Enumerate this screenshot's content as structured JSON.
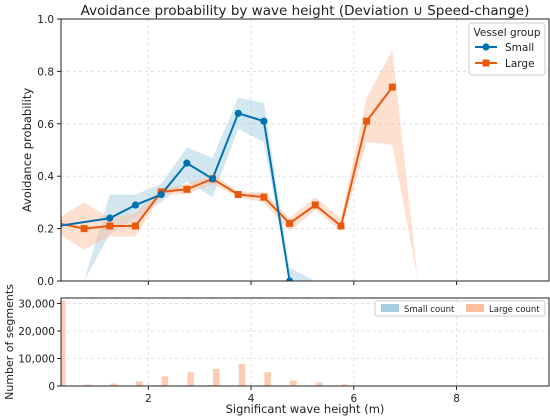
{
  "chart_data": [
    {
      "type": "line",
      "title": "Avoidance probability by wave height (Deviation ∪ Speed-change)",
      "xlabel": "",
      "ylabel": "Avoidance probability",
      "xlim": [
        0.3,
        9.8
      ],
      "ylim": [
        0,
        1.0
      ],
      "yticks": [
        0.0,
        0.2,
        0.4,
        0.6,
        0.8,
        1.0
      ],
      "ytick_labels": [
        "0.0",
        "0.2",
        "0.4",
        "0.6",
        "0.8",
        "1.0"
      ],
      "grid": true,
      "legend": {
        "title": "Vessel group",
        "placement": "top-right"
      },
      "series": [
        {
          "name": "Small",
          "color": "#0072B2",
          "marker": "circle",
          "x": [
            0.25,
            1.25,
            1.75,
            2.25,
            2.75,
            3.25,
            3.75,
            4.25,
            4.75
          ],
          "y": [
            0.21,
            0.24,
            0.29,
            0.33,
            0.45,
            0.39,
            0.64,
            0.61,
            0.0
          ],
          "ci_x": [
            0.25,
            0.75,
            1.25,
            1.75,
            2.25,
            2.75,
            3.25,
            3.75,
            4.25,
            4.75,
            5.25
          ],
          "ci_low": [
            0.22,
            0.0,
            0.18,
            0.24,
            0.3,
            0.38,
            0.32,
            0.58,
            0.53,
            0.0,
            0.0
          ],
          "ci_high": [
            0.22,
            0.0,
            0.33,
            0.33,
            0.37,
            0.51,
            0.47,
            0.7,
            0.68,
            0.05,
            0.0
          ]
        },
        {
          "name": "Large",
          "color": "#E8590C",
          "marker": "square",
          "x": [
            0.25,
            0.75,
            1.25,
            1.75,
            2.25,
            2.75,
            3.25,
            3.75,
            4.25,
            4.75,
            5.25,
            5.75,
            6.25,
            6.75
          ],
          "y": [
            0.22,
            0.2,
            0.21,
            0.21,
            0.34,
            0.35,
            0.39,
            0.33,
            0.32,
            0.22,
            0.29,
            0.21,
            0.61,
            0.74
          ],
          "ci_x": [
            0.25,
            0.75,
            1.25,
            1.75,
            2.25,
            2.75,
            3.25,
            3.75,
            4.25,
            4.75,
            5.25,
            5.75,
            6.25,
            6.75,
            7.25
          ],
          "ci_low": [
            0.18,
            0.12,
            0.17,
            0.17,
            0.33,
            0.33,
            0.37,
            0.32,
            0.3,
            0.19,
            0.27,
            0.19,
            0.53,
            0.52,
            0.0
          ],
          "ci_high": [
            0.24,
            0.3,
            0.24,
            0.26,
            0.35,
            0.37,
            0.41,
            0.34,
            0.34,
            0.24,
            0.32,
            0.24,
            0.7,
            0.88,
            0.0
          ]
        }
      ]
    },
    {
      "type": "bar",
      "xlabel": "Significant wave height (m)",
      "ylabel": "Number of segments",
      "xlim": [
        0.3,
        9.8
      ],
      "ylim": [
        0,
        32000
      ],
      "xticks": [
        2,
        4,
        6,
        8
      ],
      "xtick_labels": [
        "2",
        "4",
        "6",
        "8"
      ],
      "yticks": [
        0,
        10000,
        20000,
        30000
      ],
      "ytick_labels": [
        "0",
        "10,000",
        "20,000",
        "30,000"
      ],
      "grid": true,
      "legend": {
        "placement": "top-right"
      },
      "x": [
        0.25,
        0.75,
        1.25,
        1.75,
        2.25,
        2.75,
        3.25,
        3.75,
        4.25,
        4.75,
        5.25,
        5.75,
        6.25,
        6.75
      ],
      "series": [
        {
          "name": "Small count",
          "color": "#A6CEE3",
          "values": [
            500,
            50,
            120,
            200,
            300,
            250,
            300,
            200,
            120,
            30,
            10,
            0,
            0,
            0
          ]
        },
        {
          "name": "Large count",
          "color": "#FDBF9F",
          "values": [
            31000,
            500,
            900,
            1700,
            3500,
            5000,
            6200,
            8000,
            5000,
            2000,
            1300,
            600,
            200,
            50
          ]
        }
      ]
    }
  ]
}
